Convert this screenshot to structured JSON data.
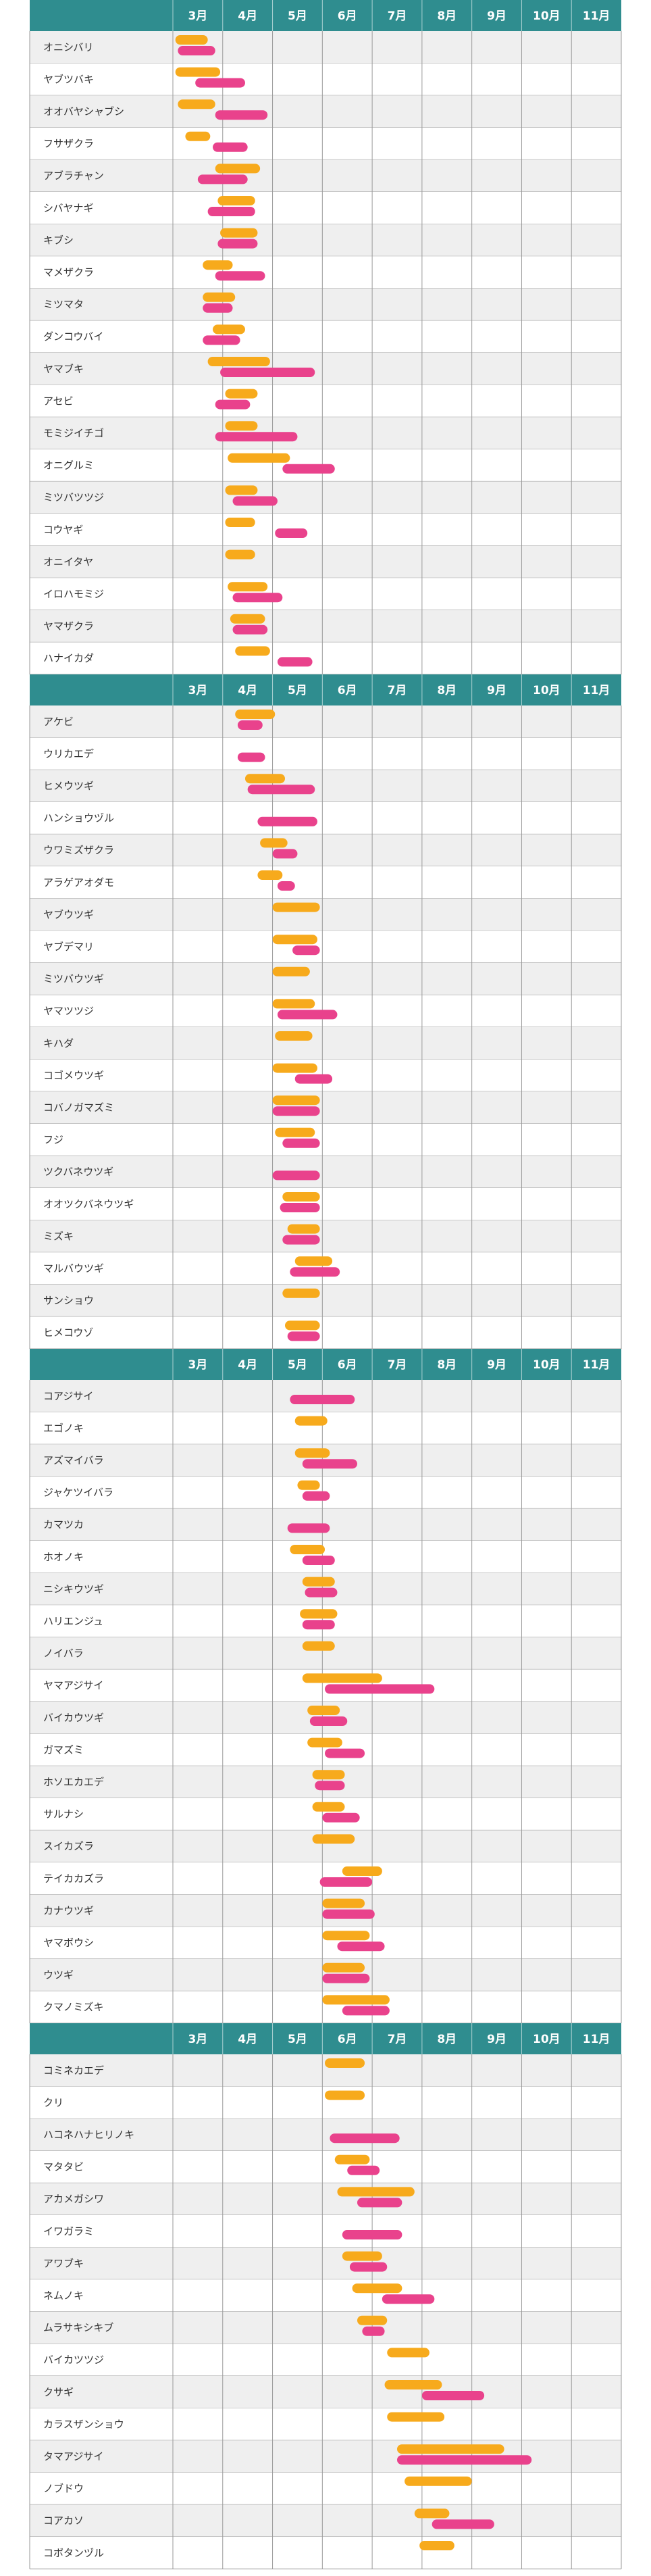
{
  "colors": {
    "header_bg": "#2f8d8f",
    "row_even": "#efefef",
    "row_odd": "#ffffff",
    "grid": "#9a9a9a",
    "orange": "#f7aa1c",
    "pink": "#e9428c"
  },
  "months": [
    "3月",
    "4月",
    "5月",
    "6月",
    "7月",
    "8月",
    "9月",
    "10月",
    "11月"
  ],
  "chart_data": {
    "type": "gantt",
    "title": "",
    "x_unit": "月",
    "xlim": [
      3,
      12
    ],
    "legend": "none",
    "series_colors": [
      "#f7aa1c",
      "#e9428c"
    ],
    "groups": [
      {
        "rows": [
          {
            "name": "オニシバリ",
            "orange": [
              3.05,
              3.7
            ],
            "pink": [
              3.1,
              3.85
            ]
          },
          {
            "name": "ヤブツバキ",
            "orange": [
              3.05,
              3.95
            ],
            "pink": [
              3.45,
              4.45
            ]
          },
          {
            "name": "オオバヤシャブシ",
            "orange": [
              3.1,
              3.85
            ],
            "pink": [
              3.85,
              4.9
            ]
          },
          {
            "name": "フサザクラ",
            "orange": [
              3.25,
              3.75
            ],
            "pink": [
              3.8,
              4.5
            ]
          },
          {
            "name": "アブラチャン",
            "orange": [
              3.85,
              4.75
            ],
            "pink": [
              3.5,
              4.5
            ]
          },
          {
            "name": "シバヤナギ",
            "orange": [
              3.9,
              4.65
            ],
            "pink": [
              3.7,
              4.65
            ]
          },
          {
            "name": "キブシ",
            "orange": [
              3.95,
              4.7
            ],
            "pink": [
              3.9,
              4.7
            ]
          },
          {
            "name": "マメザクラ",
            "orange": [
              3.6,
              4.2
            ],
            "pink": [
              3.85,
              4.85
            ]
          },
          {
            "name": "ミツマタ",
            "orange": [
              3.6,
              4.25
            ],
            "pink": [
              3.6,
              4.2
            ]
          },
          {
            "name": "ダンコウバイ",
            "orange": [
              3.8,
              4.45
            ],
            "pink": [
              3.6,
              4.35
            ]
          },
          {
            "name": "ヤマブキ",
            "orange": [
              3.7,
              4.95
            ],
            "pink": [
              3.95,
              5.85
            ]
          },
          {
            "name": "アセビ",
            "orange": [
              4.05,
              4.7
            ],
            "pink": [
              3.85,
              4.55
            ]
          },
          {
            "name": "モミジイチゴ",
            "orange": [
              4.05,
              4.7
            ],
            "pink": [
              3.85,
              5.5
            ]
          },
          {
            "name": "オニグルミ",
            "orange": [
              4.1,
              5.35
            ],
            "pink": [
              5.2,
              6.25
            ]
          },
          {
            "name": "ミツバツツジ",
            "orange": [
              4.05,
              4.7
            ],
            "pink": [
              4.2,
              5.1
            ]
          },
          {
            "name": "コウヤギ",
            "orange": [
              4.05,
              4.65
            ],
            "pink": [
              5.05,
              5.7
            ]
          },
          {
            "name": "オニイタヤ",
            "orange": [
              4.05,
              4.65
            ],
            "pink": null
          },
          {
            "name": "イロハモミジ",
            "orange": [
              4.1,
              4.9
            ],
            "pink": [
              4.2,
              5.2
            ]
          },
          {
            "name": "ヤマザクラ",
            "orange": [
              4.15,
              4.85
            ],
            "pink": [
              4.2,
              4.9
            ]
          },
          {
            "name": "ハナイカダ",
            "orange": [
              4.25,
              4.95
            ],
            "pink": [
              5.1,
              5.8
            ]
          }
        ]
      },
      {
        "rows": [
          {
            "name": "アケビ",
            "orange": [
              4.25,
              5.05
            ],
            "pink": [
              4.3,
              4.8
            ]
          },
          {
            "name": "ウリカエデ",
            "orange": null,
            "pink": [
              4.3,
              4.85
            ]
          },
          {
            "name": "ヒメウツギ",
            "orange": [
              4.45,
              5.25
            ],
            "pink": [
              4.5,
              5.85
            ]
          },
          {
            "name": "ハンショウヅル",
            "orange": null,
            "pink": [
              4.7,
              5.9
            ]
          },
          {
            "name": "ウワミズザクラ",
            "orange": [
              4.75,
              5.3
            ],
            "pink": [
              5.0,
              5.5
            ]
          },
          {
            "name": "アラゲアオダモ",
            "orange": [
              4.7,
              5.2
            ],
            "pink": [
              5.1,
              5.45
            ]
          },
          {
            "name": "ヤブウツギ",
            "orange": [
              5.0,
              5.95
            ],
            "pink": null
          },
          {
            "name": "ヤブデマリ",
            "orange": [
              5.0,
              5.9
            ],
            "pink": [
              5.4,
              5.95
            ]
          },
          {
            "name": "ミツバウツギ",
            "orange": [
              5.0,
              5.75
            ],
            "pink": null
          },
          {
            "name": "ヤマツツジ",
            "orange": [
              5.0,
              5.85
            ],
            "pink": [
              5.1,
              6.3
            ]
          },
          {
            "name": "キハダ",
            "orange": [
              5.05,
              5.8
            ],
            "pink": null
          },
          {
            "name": "コゴメウツギ",
            "orange": [
              5.0,
              5.9
            ],
            "pink": [
              5.45,
              6.2
            ]
          },
          {
            "name": "コバノガマズミ",
            "orange": [
              5.0,
              5.95
            ],
            "pink": [
              5.0,
              5.95
            ]
          },
          {
            "name": "フジ",
            "orange": [
              5.05,
              5.85
            ],
            "pink": [
              5.2,
              5.95
            ]
          },
          {
            "name": "ツクバネウツギ",
            "orange": null,
            "pink": [
              5.0,
              5.95
            ]
          },
          {
            "name": "オオツクバネウツギ",
            "orange": [
              5.2,
              5.95
            ],
            "pink": [
              5.15,
              5.95
            ]
          },
          {
            "name": "ミズキ",
            "orange": [
              5.3,
              5.95
            ],
            "pink": [
              5.2,
              5.95
            ]
          },
          {
            "name": "マルバウツギ",
            "orange": [
              5.45,
              6.2
            ],
            "pink": [
              5.35,
              6.35
            ]
          },
          {
            "name": "サンショウ",
            "orange": [
              5.2,
              5.95
            ],
            "pink": null
          },
          {
            "name": "ヒメコウゾ",
            "orange": [
              5.25,
              5.95
            ],
            "pink": [
              5.3,
              5.95
            ]
          }
        ]
      },
      {
        "rows": [
          {
            "name": "コアジサイ",
            "orange": null,
            "pink": [
              5.35,
              6.65
            ]
          },
          {
            "name": "エゴノキ",
            "orange": [
              5.45,
              6.1
            ],
            "pink": null
          },
          {
            "name": "アズマイバラ",
            "orange": [
              5.45,
              6.15
            ],
            "pink": [
              5.6,
              6.7
            ]
          },
          {
            "name": "ジャケツイバラ",
            "orange": [
              5.5,
              5.95
            ],
            "pink": [
              5.6,
              6.15
            ]
          },
          {
            "name": "カマツカ",
            "orange": null,
            "pink": [
              5.3,
              6.15
            ]
          },
          {
            "name": "ホオノキ",
            "orange": [
              5.35,
              6.05
            ],
            "pink": [
              5.6,
              6.25
            ]
          },
          {
            "name": "ニシキウツギ",
            "orange": [
              5.6,
              6.25
            ],
            "pink": [
              5.65,
              6.3
            ]
          },
          {
            "name": "ハリエンジュ",
            "orange": [
              5.55,
              6.3
            ],
            "pink": [
              5.6,
              6.25
            ]
          },
          {
            "name": "ノイバラ",
            "orange": [
              5.6,
              6.25
            ],
            "pink": null
          },
          {
            "name": "ヤマアジサイ",
            "orange": [
              5.6,
              7.2
            ],
            "pink": [
              6.05,
              8.25
            ]
          },
          {
            "name": "バイカウツギ",
            "orange": [
              5.7,
              6.35
            ],
            "pink": [
              5.75,
              6.5
            ]
          },
          {
            "name": "ガマズミ",
            "orange": [
              5.7,
              6.4
            ],
            "pink": [
              6.05,
              6.85
            ]
          },
          {
            "name": "ホソエカエデ",
            "orange": [
              5.8,
              6.45
            ],
            "pink": [
              5.85,
              6.45
            ]
          },
          {
            "name": "サルナシ",
            "orange": [
              5.8,
              6.45
            ],
            "pink": [
              6.0,
              6.75
            ]
          },
          {
            "name": "スイカズラ",
            "orange": [
              5.8,
              6.65
            ],
            "pink": null
          },
          {
            "name": "テイカカズラ",
            "orange": [
              6.4,
              7.2
            ],
            "pink": [
              5.95,
              7.0
            ]
          },
          {
            "name": "カナウツギ",
            "orange": [
              6.0,
              6.85
            ],
            "pink": [
              6.0,
              7.05
            ]
          },
          {
            "name": "ヤマボウシ",
            "orange": [
              6.0,
              6.95
            ],
            "pink": [
              6.3,
              7.25
            ]
          },
          {
            "name": "ウツギ",
            "orange": [
              6.0,
              6.85
            ],
            "pink": [
              6.0,
              6.95
            ]
          },
          {
            "name": "クマノミズキ",
            "orange": [
              6.0,
              7.35
            ],
            "pink": [
              6.4,
              7.35
            ]
          }
        ]
      },
      {
        "rows": [
          {
            "name": "コミネカエデ",
            "orange": [
              6.05,
              6.85
            ],
            "pink": null
          },
          {
            "name": "クリ",
            "orange": [
              6.05,
              6.85
            ],
            "pink": null
          },
          {
            "name": "ハコネハナヒリノキ",
            "orange": null,
            "pink": [
              6.15,
              7.55
            ]
          },
          {
            "name": "マタタビ",
            "orange": [
              6.25,
              6.95
            ],
            "pink": [
              6.5,
              7.15
            ]
          },
          {
            "name": "アカメガシワ",
            "orange": [
              6.3,
              7.85
            ],
            "pink": [
              6.7,
              7.6
            ]
          },
          {
            "name": "イワガラミ",
            "orange": null,
            "pink": [
              6.4,
              7.6
            ]
          },
          {
            "name": "アワブキ",
            "orange": [
              6.4,
              7.2
            ],
            "pink": [
              6.55,
              7.3
            ]
          },
          {
            "name": "ネムノキ",
            "orange": [
              6.6,
              7.6
            ],
            "pink": [
              7.2,
              8.25
            ]
          },
          {
            "name": "ムラサキシキブ",
            "orange": [
              6.7,
              7.3
            ],
            "pink": [
              6.8,
              7.25
            ]
          },
          {
            "name": "バイカツツジ",
            "orange": [
              7.3,
              8.15
            ],
            "pink": null
          },
          {
            "name": "クサギ",
            "orange": [
              7.25,
              8.4
            ],
            "pink": [
              8.0,
              9.25
            ]
          },
          {
            "name": "カラスザンショウ",
            "orange": [
              7.3,
              8.45
            ],
            "pink": null
          },
          {
            "name": "タマアジサイ",
            "orange": [
              7.5,
              9.65
            ],
            "pink": [
              7.5,
              10.2
            ]
          },
          {
            "name": "ノブドウ",
            "orange": [
              7.65,
              9.0
            ],
            "pink": null
          },
          {
            "name": "コアカソ",
            "orange": [
              7.85,
              8.55
            ],
            "pink": [
              8.2,
              9.45
            ]
          },
          {
            "name": "コボタンヅル",
            "orange": [
              7.95,
              8.65
            ],
            "pink": null
          }
        ]
      }
    ]
  }
}
